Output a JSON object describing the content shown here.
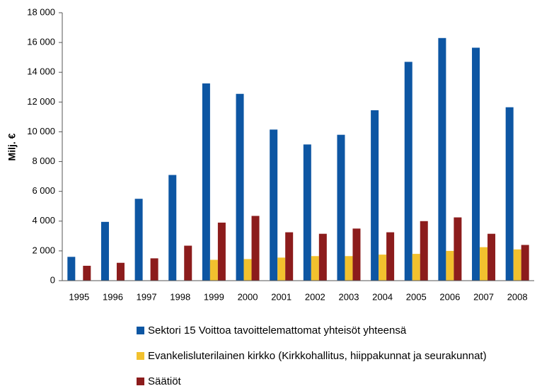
{
  "chart_data": {
    "type": "bar",
    "y_label": "Milj. €",
    "categories": [
      "1995",
      "1996",
      "1997",
      "1998",
      "1999",
      "2000",
      "2001",
      "2002",
      "2003",
      "2004",
      "2005",
      "2006",
      "2007",
      "2008"
    ],
    "series": [
      {
        "name": "Sektori 15 Voittoa tavoittelemattomat yhteisöt yhteensä",
        "color": "#0d56a3",
        "values": [
          1600,
          3950,
          5500,
          7100,
          13250,
          12550,
          10150,
          9150,
          9800,
          11450,
          14700,
          16300,
          15650,
          11650
        ]
      },
      {
        "name": "Evankelisluterilainen kirkko (Kirkkohallitus, hiippakunnat ja seurakunnat)",
        "color": "#f2c12e",
        "values": [
          null,
          null,
          null,
          null,
          1400,
          1450,
          1550,
          1650,
          1650,
          1750,
          1800,
          2000,
          2250,
          2100
        ]
      },
      {
        "name": "Säätiöt",
        "color": "#8c1c1c",
        "values": [
          1000,
          1200,
          1500,
          2350,
          3900,
          4350,
          3250,
          3150,
          3500,
          3250,
          4000,
          4250,
          3150,
          2400
        ]
      }
    ],
    "ylim": [
      0,
      18000
    ],
    "yticks": [
      0,
      {
        "value": 2000,
        "label": "2 000"
      },
      {
        "value": 4000,
        "label": "4 000"
      },
      {
        "value": 6000,
        "label": "6 000"
      },
      {
        "value": 8000,
        "label": "8 000"
      },
      {
        "value": 10000,
        "label": "10 000"
      },
      {
        "value": 12000,
        "label": "12 000"
      },
      {
        "value": 14000,
        "label": "14 000"
      },
      {
        "value": 16000,
        "label": "16 000"
      },
      {
        "value": 18000,
        "label": "18 000"
      }
    ],
    "legend": "bottom"
  }
}
